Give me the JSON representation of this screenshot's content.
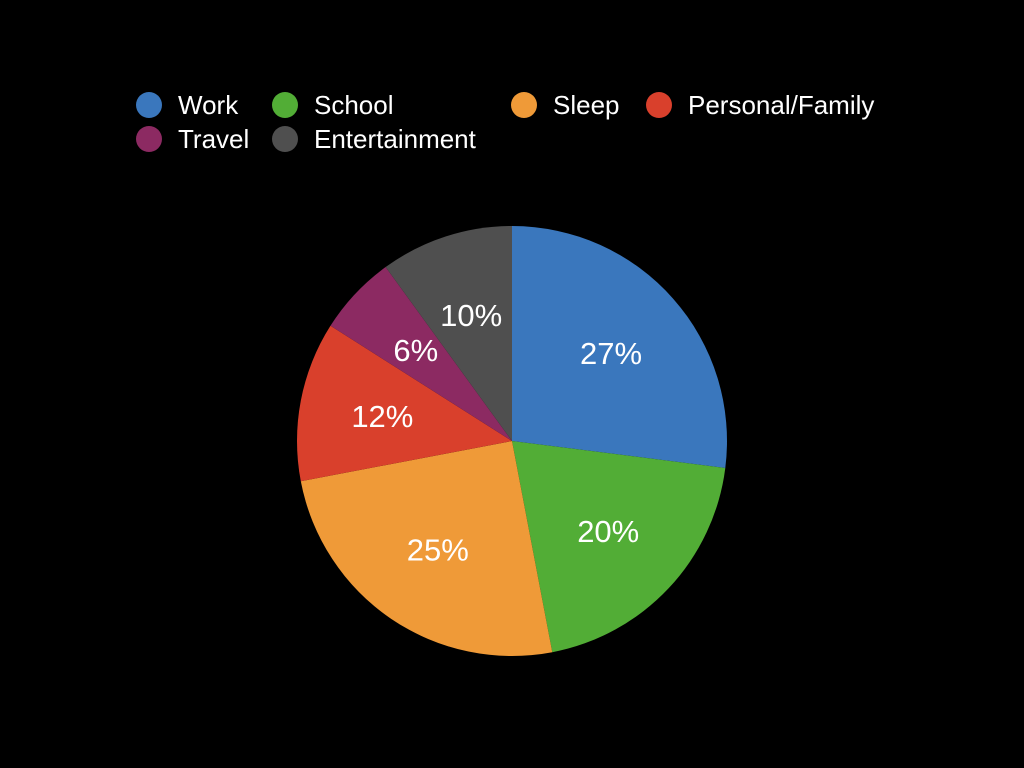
{
  "chart_data": {
    "type": "pie",
    "categories": [
      "Work",
      "School",
      "Sleep",
      "Personal/Family",
      "Travel",
      "Entertainment"
    ],
    "values": [
      27,
      20,
      25,
      12,
      6,
      10
    ],
    "data_labels": [
      "27%",
      "20%",
      "25%",
      "12%",
      "6%",
      "10%"
    ],
    "colors": [
      "#3a77bd",
      "#52ad36",
      "#ef9a38",
      "#d9402c",
      "#8c2a62",
      "#4f4f4f"
    ],
    "legend_position": "top",
    "start_angle": "12 o'clock",
    "direction": "clockwise"
  },
  "legend": {
    "items": [
      {
        "label": "Work",
        "color": "#3a77bd"
      },
      {
        "label": "School",
        "color": "#52ad36"
      },
      {
        "label": "Sleep",
        "color": "#ef9a38"
      },
      {
        "label": "Personal/Family",
        "color": "#d9402c"
      },
      {
        "label": "Travel",
        "color": "#8c2a62"
      },
      {
        "label": "Entertainment",
        "color": "#4f4f4f"
      }
    ]
  },
  "background_color": "#000000"
}
